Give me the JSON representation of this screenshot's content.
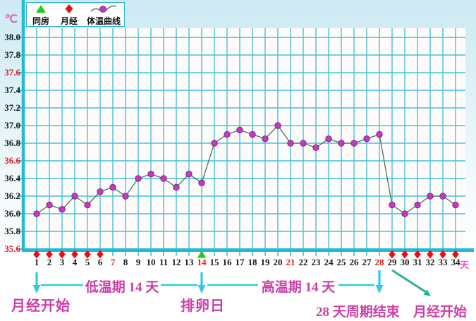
{
  "unit_label": "℃",
  "legend": {
    "items": [
      {
        "label": "同房",
        "icon": "triangle-icon"
      },
      {
        "label": "月经",
        "icon": "diamond-icon"
      },
      {
        "label": "体温曲线",
        "icon": "curve-icon"
      }
    ]
  },
  "chart_data": {
    "type": "line",
    "x": [
      1,
      2,
      3,
      4,
      5,
      6,
      7,
      8,
      9,
      10,
      11,
      12,
      13,
      14,
      15,
      16,
      17,
      18,
      19,
      20,
      21,
      22,
      23,
      24,
      25,
      26,
      27,
      28,
      29,
      30,
      31,
      32,
      33,
      34
    ],
    "series": [
      {
        "name": "体温曲线",
        "values": [
          36.0,
          36.1,
          36.05,
          36.2,
          36.1,
          36.25,
          36.3,
          36.2,
          36.4,
          36.45,
          36.4,
          36.3,
          36.45,
          36.35,
          36.8,
          36.9,
          36.95,
          36.9,
          36.85,
          37.0,
          36.8,
          36.8,
          36.75,
          36.85,
          36.8,
          36.8,
          36.85,
          36.9,
          36.1,
          36.0,
          36.1,
          36.2,
          36.2,
          36.1
        ]
      }
    ],
    "ylabel": "℃",
    "xlabel": "天",
    "ylim": [
      35.6,
      38.0
    ],
    "ytick_step": 0.2,
    "yticks": [
      "38.0",
      "37.8",
      "37.6",
      "37.4",
      "37.2",
      "37.0",
      "36.8",
      "36.6",
      "36.4",
      "36.2",
      "36.0",
      "35.8",
      "35.6"
    ],
    "red_yticks": [
      "37.6",
      "36.6",
      "35.6"
    ],
    "red_xticks": [
      7,
      14,
      21,
      28
    ],
    "menstruation_days": [
      1,
      2,
      3,
      4,
      5,
      6,
      29,
      30,
      31,
      32,
      33,
      34
    ],
    "intercourse_days": [
      14
    ],
    "grid": true,
    "legend_position": "top-left"
  },
  "annotations": {
    "low_phase": "低温期 14 天",
    "high_phase": "高温期 14 天",
    "menses_start_left": "月经开始",
    "ovulation_day": "排卵日",
    "cycle_end": "28 天周期结束",
    "menses_start_right": "月经开始"
  },
  "colors": {
    "grid": "#43c2d8",
    "border": "#25b9d8",
    "plot_fill": "#fffbfb",
    "curve": "#4d724d",
    "point_fill": "#c538c5",
    "point_stroke": "#7d2b7d",
    "diamond": "#e81010",
    "triangle": "#1ecc1e",
    "arrow": "#2fc9e9",
    "diagonal_arrow": "#2fae9f",
    "annotation_text": "#cc3fa8",
    "tick_red": "#e02020",
    "tick_black": "#1a1a1a",
    "day_unit_color": "#e858b8",
    "unit_label_color": "#e060b0"
  }
}
